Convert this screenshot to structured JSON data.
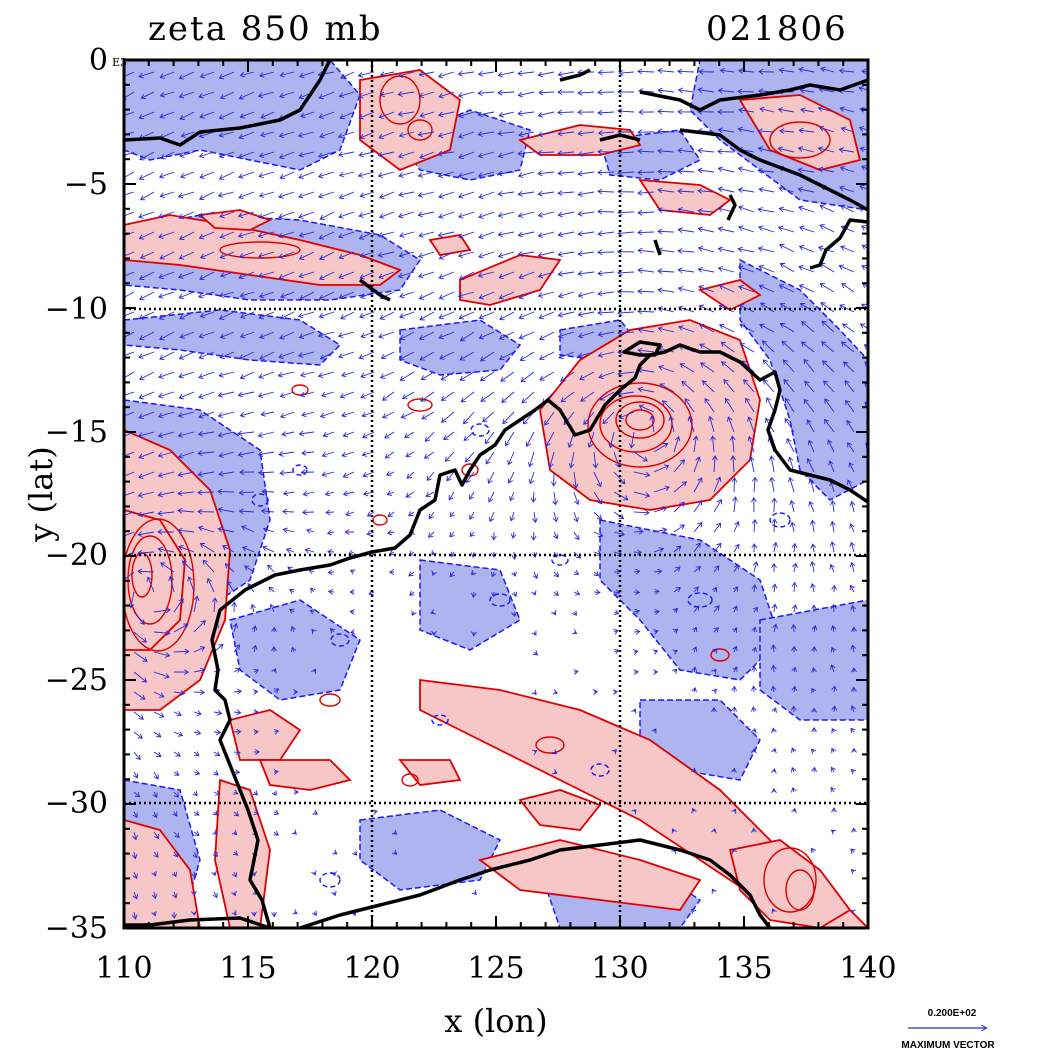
{
  "title_left": "zeta 850 mb",
  "title_right": "021806",
  "x_axis_label": "x (lon)",
  "y_axis_label": "y (lat)",
  "corner_label": "E3",
  "x_ticks": [
    "110",
    "115",
    "120",
    "125",
    "130",
    "135",
    "140"
  ],
  "y_ticks": [
    "0",
    "−5",
    "−10",
    "−15",
    "−20",
    "−25",
    "−30",
    "−35"
  ],
  "legend": {
    "value": "0.200E+02",
    "label": "MAXIMUM VECTOR"
  },
  "colors": {
    "positive_fill": "#f7c6c6",
    "positive_contour": "#e00000",
    "negative_fill": "#aeb4f0",
    "negative_contour": "#1a1aff",
    "coastline": "#000000",
    "vectors": "#2a2ad8",
    "grid": "#000000"
  },
  "chart_data": {
    "type": "contour map with wind vectors",
    "variable": "zeta 850 mb",
    "time": "021806",
    "xlim": [
      110,
      140
    ],
    "ylim": [
      -35,
      0
    ],
    "x_ticks": [
      110,
      115,
      120,
      125,
      130,
      135,
      140
    ],
    "y_ticks": [
      0,
      -5,
      -10,
      -15,
      -20,
      -25,
      -30,
      -35
    ],
    "grid_lon": [
      120,
      130
    ],
    "grid_lat": [
      -10,
      -20,
      -30
    ],
    "vector_scale": "0.200E+02",
    "features": [
      {
        "kind": "positive vorticity",
        "lon": 131,
        "lat": -15,
        "note": "cyclonic maximum near coast"
      },
      {
        "kind": "positive vorticity",
        "lon": 111,
        "lat": -21
      },
      {
        "kind": "positive vorticity band",
        "lon": 127,
        "lat": -27
      },
      {
        "kind": "positive vorticity band",
        "lon": 116,
        "lat": -8
      }
    ]
  }
}
